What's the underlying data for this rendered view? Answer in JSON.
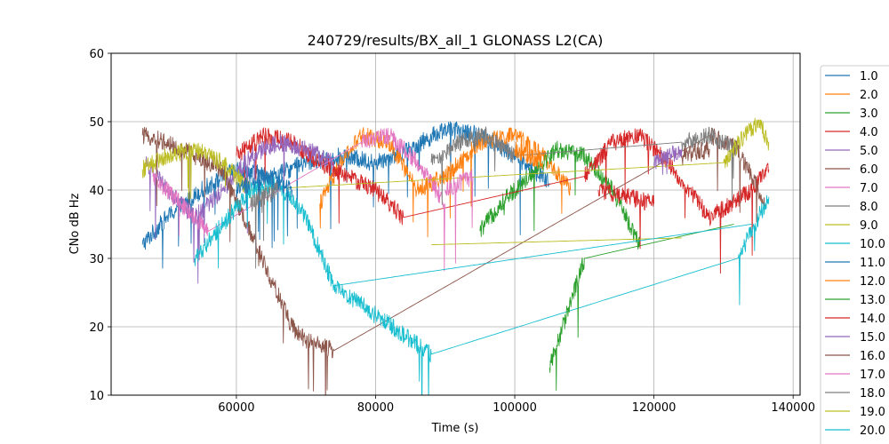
{
  "chart_data": {
    "type": "line",
    "title": "240729/results/BX_all_1 GLONASS L2(CA)",
    "xlabel": "Time (s)",
    "ylabel": "CNo dB Hz",
    "xlim": [
      42000,
      141000
    ],
    "ylim": [
      10,
      60
    ],
    "x_ticks": [
      60000,
      80000,
      100000,
      120000,
      140000
    ],
    "x_tick_labels": [
      "60000",
      "80000",
      "100000",
      "120000",
      "140000"
    ],
    "y_ticks": [
      10,
      20,
      30,
      40,
      50,
      60
    ],
    "y_tick_labels": [
      "10",
      "20",
      "30",
      "40",
      "50",
      "60"
    ],
    "grid": true,
    "legend_position": "right-outside",
    "legend": [
      "1.0",
      "2.0",
      "3.0",
      "4.0",
      "5.0",
      "6.0",
      "7.0",
      "8.0",
      "9.0",
      "10.0",
      "11.0",
      "12.0",
      "13.0",
      "14.0",
      "15.0",
      "16.0",
      "17.0",
      "18.0",
      "19.0",
      "20.0"
    ],
    "series": [
      {
        "name": "1.0",
        "color": "#1f77b4",
        "x": [
          46500,
          50000,
          55000,
          60000,
          65000,
          70000,
          75000,
          80000,
          85000,
          90000,
          95000,
          100000,
          105000
        ],
        "y": [
          32,
          36,
          40,
          43,
          42,
          44,
          45,
          44,
          46,
          49,
          48,
          45,
          41
        ]
      },
      {
        "name": "2.0",
        "color": "#ff7f0e",
        "x": [
          72000,
          75000,
          78000,
          82000,
          86000,
          90000,
          95000,
          100000,
          104000,
          108000
        ],
        "y": [
          38,
          44,
          48,
          47,
          40,
          42,
          47,
          48,
          45,
          40
        ]
      },
      {
        "name": "3.0",
        "color": "#2ca02c",
        "x": [
          95000,
          98000,
          102000,
          106000,
          110000,
          114000,
          118000
        ],
        "y": [
          34,
          38,
          42,
          46,
          45,
          40,
          32
        ]
      },
      {
        "name": "4.0",
        "color": "#d62728",
        "x": [
          60000,
          64000,
          68000,
          72000,
          76000,
          80000,
          84000,
          110000,
          114000,
          118000,
          122000,
          128000,
          134000,
          136500
        ],
        "y": [
          45,
          48,
          47,
          44,
          42,
          40,
          36,
          42,
          47,
          48,
          44,
          36,
          40,
          43
        ]
      },
      {
        "name": "5.0",
        "color": "#9467bd",
        "x": [
          47000,
          50000,
          54000,
          58000,
          62000,
          66000,
          70000,
          74000
        ],
        "y": [
          44,
          40,
          36,
          40,
          45,
          47,
          46,
          44
        ]
      },
      {
        "name": "6.0",
        "color": "#8c564b",
        "x": [
          46500,
          50000,
          54000,
          58000,
          68000,
          70000,
          74000,
          128000,
          132000,
          136000
        ],
        "y": [
          48,
          47,
          45,
          43,
          20,
          18,
          16.5,
          48,
          46,
          38
        ]
      },
      {
        "name": "7.0",
        "color": "#e377c2",
        "x": [
          48000,
          52000,
          56000,
          78000,
          82000,
          86000,
          90000
        ],
        "y": [
          42,
          38,
          34,
          47,
          48,
          44,
          38
        ]
      },
      {
        "name": "8.0",
        "color": "#7f7f7f",
        "x": [
          88000,
          92000,
          96000,
          100000,
          124000,
          128000,
          132000
        ],
        "y": [
          44,
          47,
          48,
          45,
          47,
          48,
          46
        ]
      },
      {
        "name": "9.0",
        "color": "#bcbd22",
        "x": [
          46500,
          50000,
          54000,
          58000,
          62000,
          130000,
          133000,
          135000,
          136500
        ],
        "y": [
          43,
          45,
          46,
          44,
          40,
          44,
          48,
          50,
          47
        ]
      },
      {
        "name": "10.0",
        "color": "#17becf",
        "x": [
          54000,
          58000,
          62000,
          66000,
          70000,
          74000,
          88000,
          132000,
          135000,
          136500
        ],
        "y": [
          30,
          35,
          40,
          41,
          36,
          26,
          16,
          30,
          36,
          39
        ]
      },
      {
        "name": "11.0",
        "color": "#1f77b4",
        "x": [
          60000,
          64000,
          68000
        ],
        "y": [
          40,
          42,
          40
        ]
      },
      {
        "name": "12.0",
        "color": "#ff7f0e",
        "x": [
          100000,
          104000
        ],
        "y": [
          46,
          44
        ]
      },
      {
        "name": "13.0",
        "color": "#2ca02c",
        "x": [
          105000,
          110000,
          131500
        ],
        "y": [
          14,
          30,
          35
        ]
      },
      {
        "name": "14.0",
        "color": "#d62728",
        "x": [
          112000,
          120000
        ],
        "y": [
          40,
          38
        ]
      },
      {
        "name": "15.0",
        "color": "#9467bd",
        "x": [
          120000,
          124000
        ],
        "y": [
          44,
          46
        ]
      },
      {
        "name": "16.0",
        "color": "#8c564b",
        "x": [
          124000,
          128000
        ],
        "y": [
          45,
          46
        ]
      },
      {
        "name": "17.0",
        "color": "#e377c2",
        "x": [
          90000,
          94000
        ],
        "y": [
          40,
          42
        ]
      },
      {
        "name": "18.0",
        "color": "#7f7f7f",
        "x": [
          62000,
          66000
        ],
        "y": [
          38,
          40
        ]
      },
      {
        "name": "19.0",
        "color": "#bcbd22",
        "x": [
          88000,
          124000
        ],
        "y": [
          32,
          33
        ]
      },
      {
        "name": "20.0",
        "color": "#17becf",
        "x": [
          74000,
          134000
        ],
        "y": [
          26,
          35
        ]
      }
    ]
  }
}
